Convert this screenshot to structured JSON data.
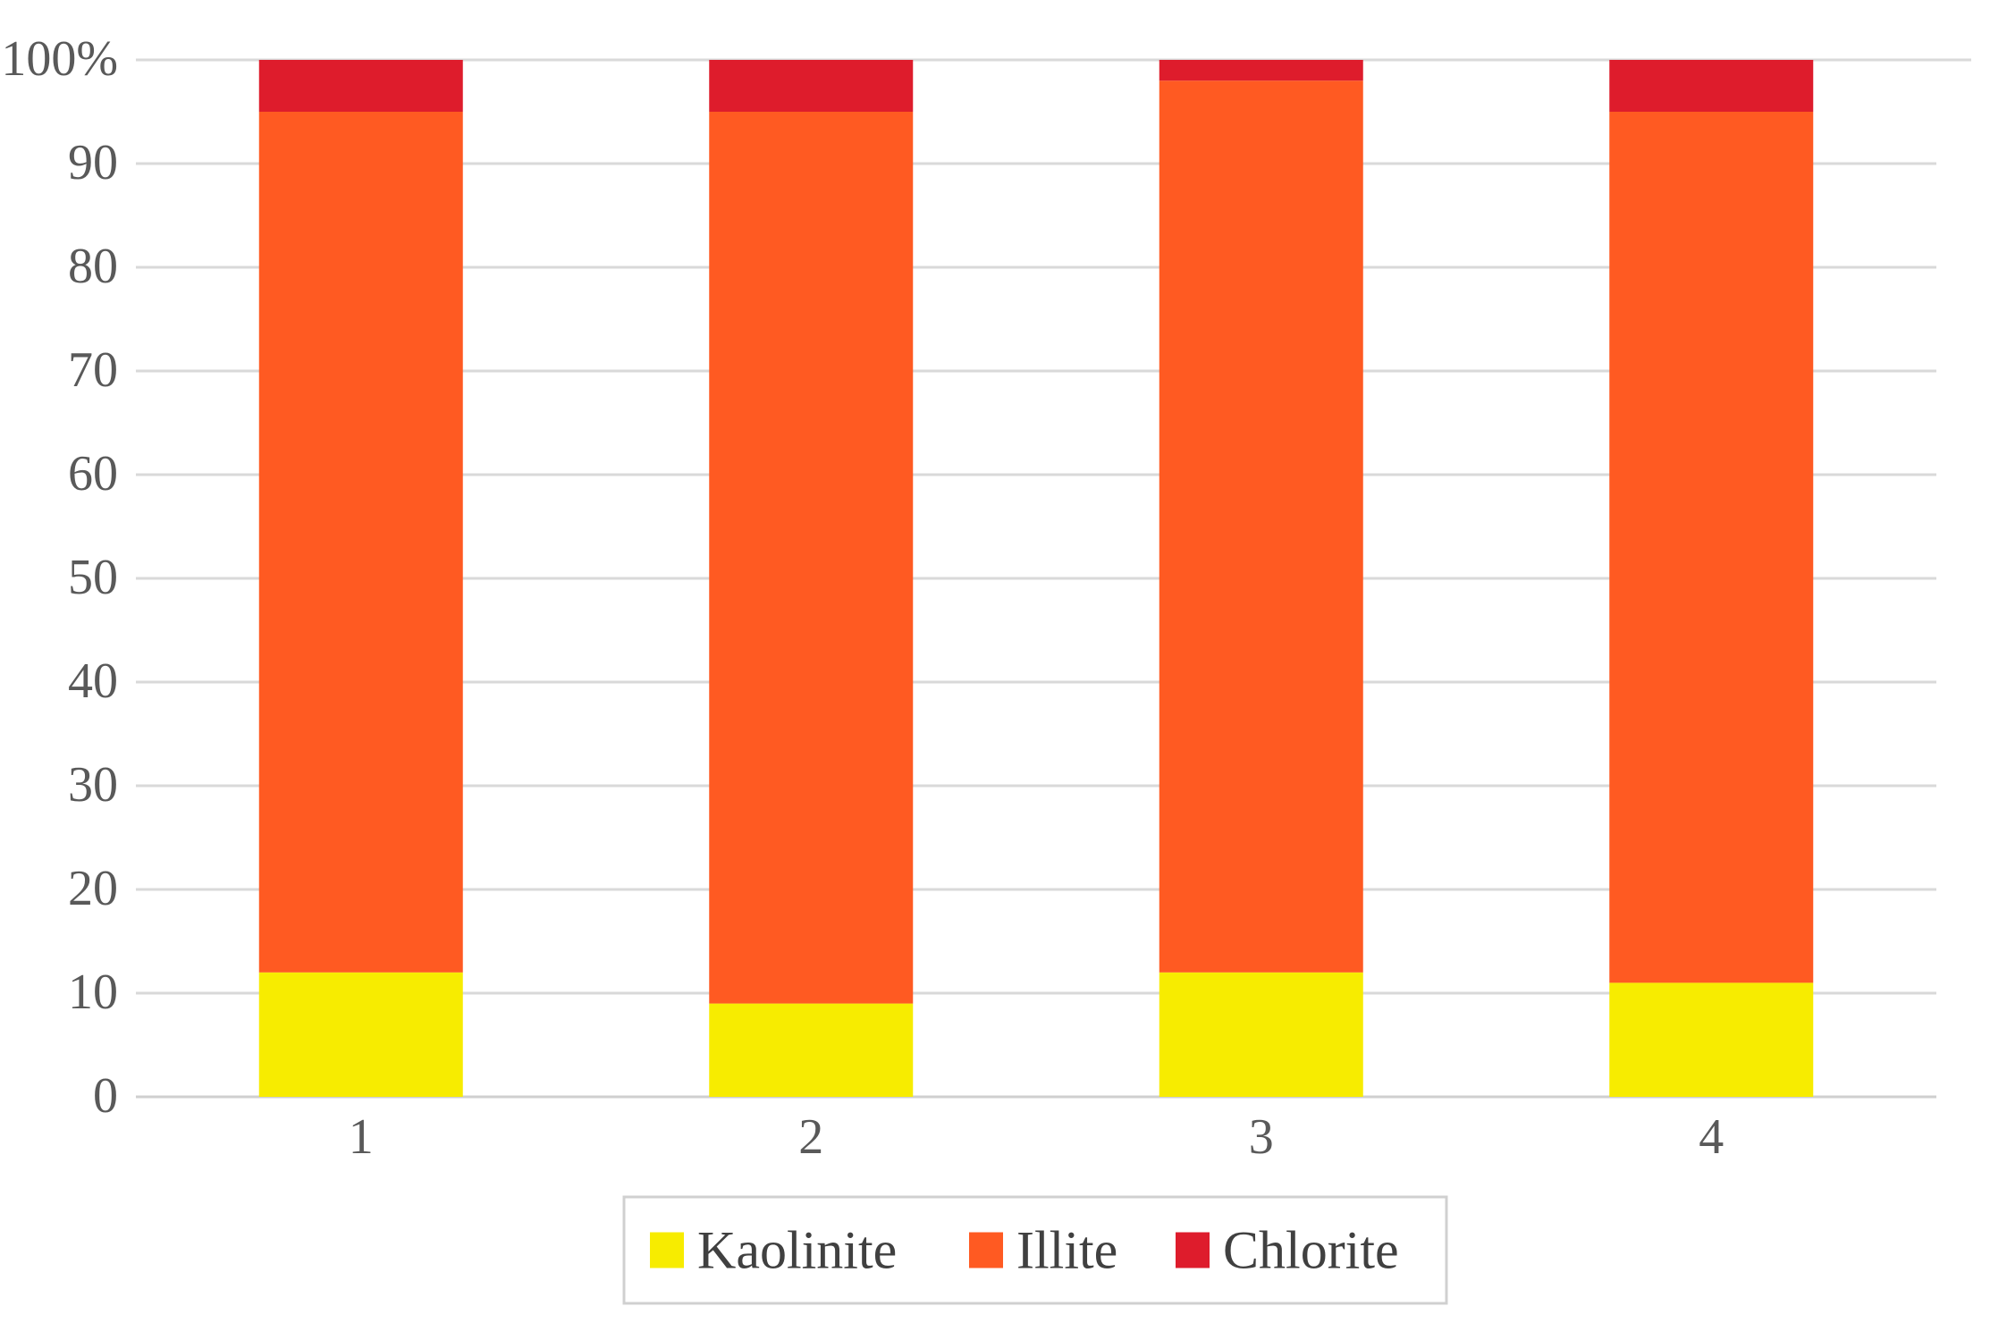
{
  "chart_data": {
    "type": "bar",
    "stacked": true,
    "categories": [
      "1",
      "2",
      "3",
      "4"
    ],
    "series": [
      {
        "name": "Kaolinite",
        "color": "#f7ec00",
        "values": [
          12,
          9,
          12,
          11
        ]
      },
      {
        "name": "Illite",
        "color": "#ff5a22",
        "values": [
          83,
          86,
          86,
          84
        ]
      },
      {
        "name": "Chlorite",
        "color": "#de1c2c",
        "values": [
          5,
          5,
          2,
          5
        ]
      }
    ],
    "yticks": [
      "0",
      "10",
      "20",
      "30",
      "40",
      "50",
      "60",
      "70",
      "80",
      "90",
      "100%"
    ],
    "ylim": [
      0,
      100
    ],
    "grid": true,
    "legend_position": "bottom",
    "xlabel": "",
    "ylabel": "",
    "title": ""
  }
}
